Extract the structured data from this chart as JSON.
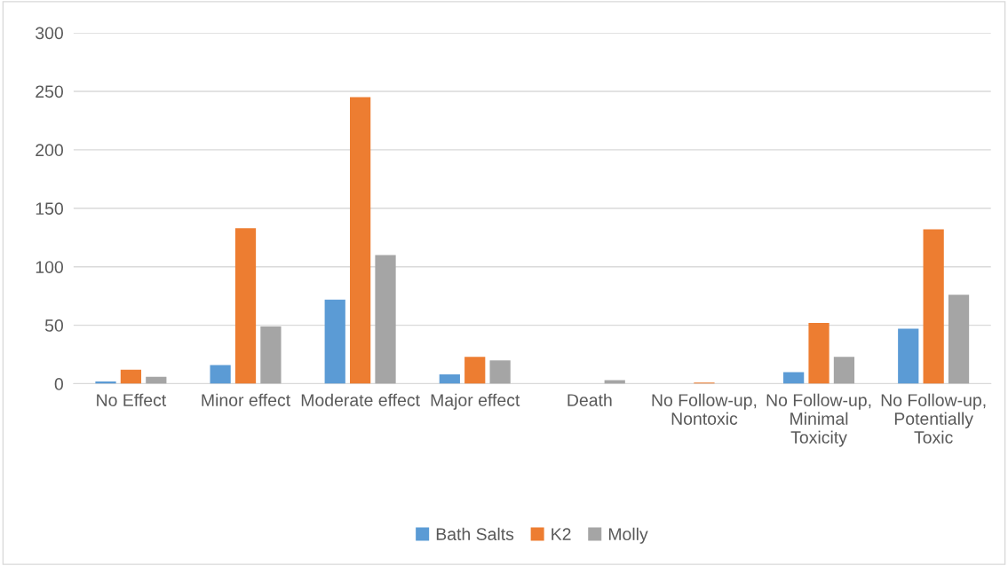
{
  "chart_data": {
    "type": "bar",
    "categories": [
      "No Effect",
      "Minor effect",
      "Moderate effect",
      "Major effect",
      "Death",
      "No Follow-up, Nontoxic",
      "No Follow-up, Minimal Toxicity",
      "No Follow-up, Potentially Toxic"
    ],
    "series": [
      {
        "name": "Bath Salts",
        "color": "#5b9bd5",
        "values": [
          2,
          16,
          72,
          8,
          0,
          0,
          10,
          47
        ]
      },
      {
        "name": "K2",
        "color": "#ed7d31",
        "values": [
          12,
          133,
          245,
          23,
          0,
          1,
          52,
          132
        ]
      },
      {
        "name": "Molly",
        "color": "#a5a5a5",
        "values": [
          6,
          49,
          110,
          20,
          3,
          0,
          23,
          76
        ]
      }
    ],
    "ylim": [
      0,
      300
    ],
    "yticks": [
      0,
      50,
      100,
      150,
      200,
      250,
      300
    ],
    "grid": "y",
    "legend": "bottom"
  }
}
